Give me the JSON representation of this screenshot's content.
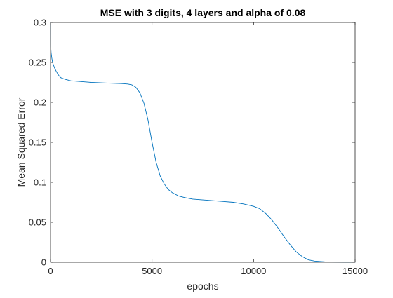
{
  "chart_data": {
    "type": "line",
    "title": "MSE with 3 digits, 4 layers and alpha of 0.08",
    "xlabel": "epochs",
    "ylabel": "Mean Squared Error",
    "xlim": [
      0,
      15000
    ],
    "ylim": [
      0,
      0.3
    ],
    "xticks": [
      0,
      5000,
      10000,
      15000
    ],
    "xtick_labels": [
      "0",
      "5000",
      "10000",
      "15000"
    ],
    "yticks": [
      0,
      0.05,
      0.1,
      0.15,
      0.2,
      0.25,
      0.3
    ],
    "ytick_labels": [
      "0",
      "0.05",
      "0.1",
      "0.15",
      "0.2",
      "0.25",
      "0.3"
    ],
    "grid": false,
    "line_color": "#0072bd",
    "series": [
      {
        "x": [
          0,
          10,
          30,
          60,
          100,
          200,
          300,
          400,
          500,
          700,
          1000,
          1500,
          2000,
          2500,
          3000,
          3500,
          3800,
          4000,
          4200,
          4400,
          4600,
          4800,
          5000,
          5200,
          5400,
          5600,
          5800,
          6000,
          6300,
          6600,
          7000,
          7500,
          8000,
          8500,
          9000,
          9500,
          10000,
          10300,
          10600,
          10900,
          11200,
          11500,
          11800,
          12100,
          12400,
          12700,
          13000,
          13500,
          14000,
          14500,
          15000
        ],
        "y": [
          0.3,
          0.27,
          0.262,
          0.256,
          0.25,
          0.243,
          0.238,
          0.234,
          0.231,
          0.229,
          0.227,
          0.226,
          0.225,
          0.2245,
          0.224,
          0.2235,
          0.223,
          0.222,
          0.219,
          0.212,
          0.199,
          0.178,
          0.15,
          0.125,
          0.108,
          0.098,
          0.091,
          0.087,
          0.083,
          0.081,
          0.079,
          0.078,
          0.077,
          0.076,
          0.075,
          0.073,
          0.07,
          0.067,
          0.061,
          0.053,
          0.043,
          0.032,
          0.022,
          0.013,
          0.007,
          0.003,
          0.0015,
          0.0006,
          0.0003,
          0.0001,
          0.0001
        ]
      }
    ]
  }
}
